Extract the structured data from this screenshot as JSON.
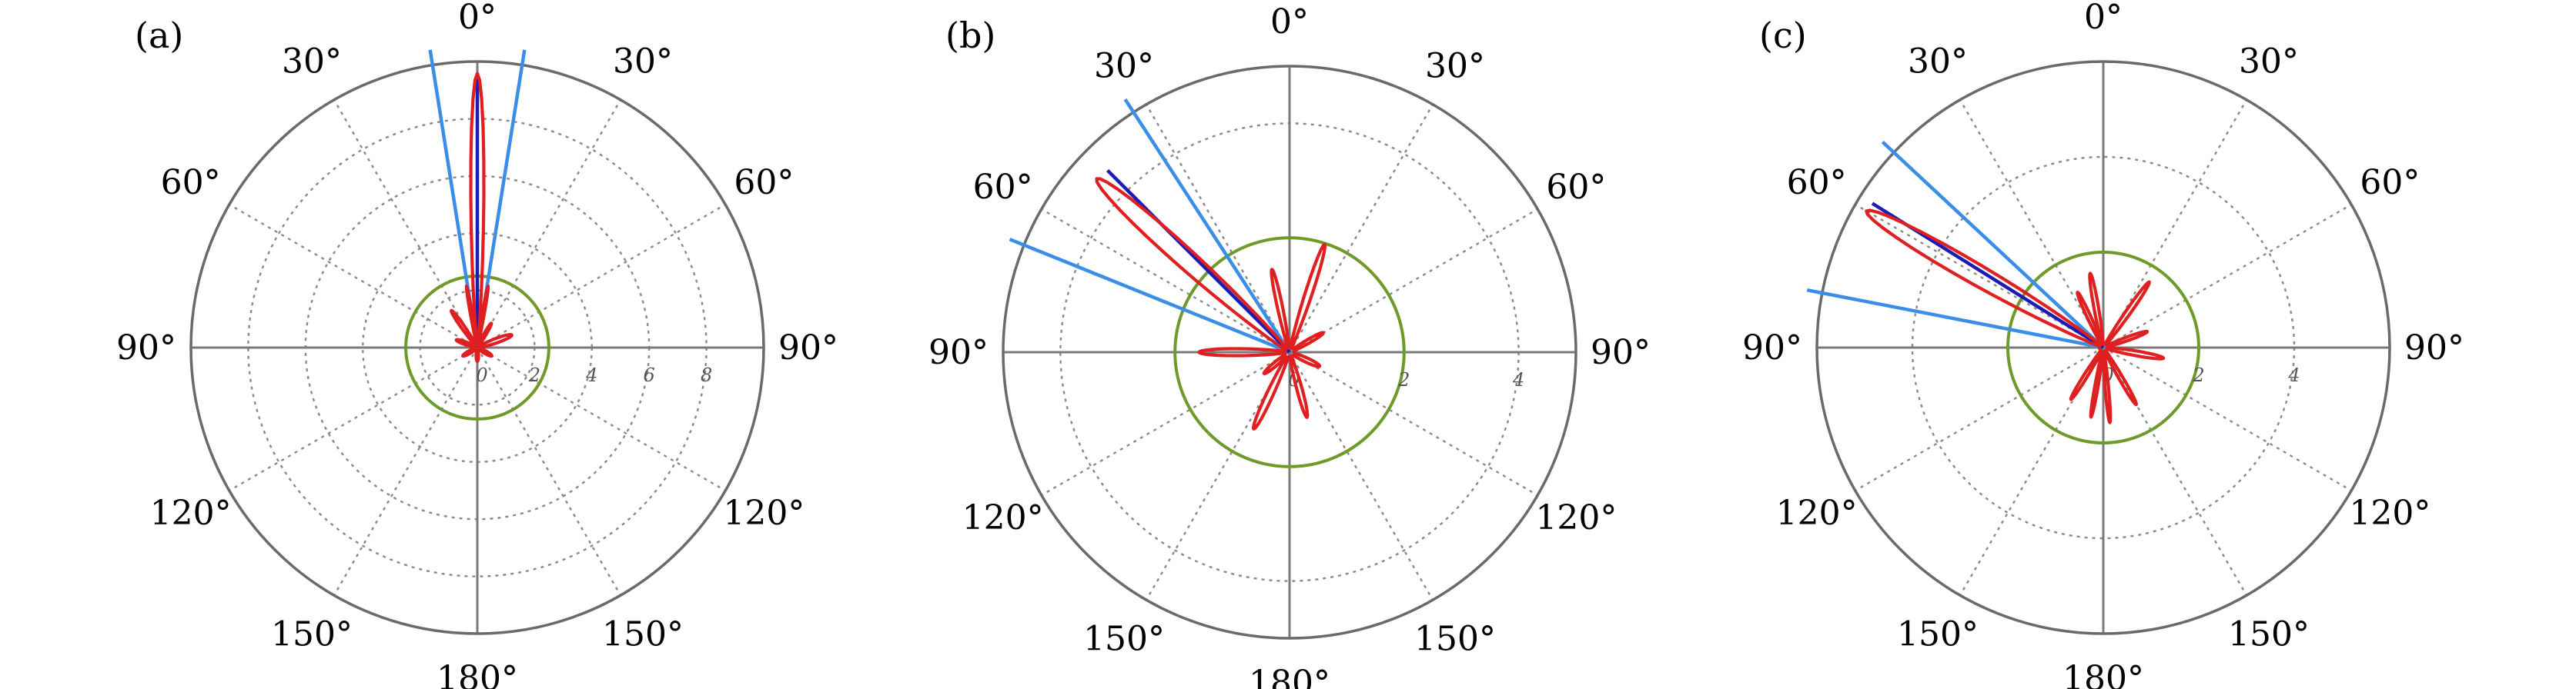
{
  "chart_data": [
    {
      "type": "polar",
      "panel_label": "(a)",
      "angle_labels": [
        {
          "angle": 0,
          "text": "0°"
        },
        {
          "angle": 30,
          "text": "30°"
        },
        {
          "angle": -30,
          "text": "30°"
        },
        {
          "angle": 60,
          "text": "60°"
        },
        {
          "angle": -60,
          "text": "60°"
        },
        {
          "angle": 90,
          "text": "90°"
        },
        {
          "angle": -90,
          "text": "90°"
        },
        {
          "angle": 120,
          "text": "120°"
        },
        {
          "angle": -120,
          "text": "120°"
        },
        {
          "angle": 150,
          "text": "150°"
        },
        {
          "angle": -150,
          "text": "150°"
        },
        {
          "angle": 180,
          "text": "180°"
        }
      ],
      "radial_ticks": [
        {
          "value": 0,
          "text": "0"
        },
        {
          "value": 2,
          "text": "2"
        },
        {
          "value": 4,
          "text": "4"
        },
        {
          "value": 6,
          "text": "6"
        },
        {
          "value": 8,
          "text": "8"
        }
      ],
      "r_max": 10,
      "grid": true,
      "reference_circle": {
        "r": 2.5,
        "color": "#6e9a2a"
      },
      "beam_center_deg": 0,
      "boundary_lines_deg": [
        -9,
        9
      ],
      "boundary_color": "#3b8ee8",
      "center_color": "#1c1cb4",
      "pattern_color": "#e02020",
      "pattern": {
        "main_lobe": {
          "dir": 0,
          "r": 9.5,
          "halfwidth_deg": 3.2
        },
        "side_lobes": [
          {
            "dir": -10,
            "r": 2.1,
            "halfwidth_deg": 2
          },
          {
            "dir": 10,
            "r": 2.1,
            "halfwidth_deg": 2
          },
          {
            "dir": -35,
            "r": 1.5,
            "halfwidth_deg": 5
          },
          {
            "dir": 30,
            "r": 0.9,
            "halfwidth_deg": 5
          },
          {
            "dir": 70,
            "r": 1.2,
            "halfwidth_deg": 8
          },
          {
            "dir": -70,
            "r": 0.7,
            "halfwidth_deg": 8
          },
          {
            "dir": 120,
            "r": 0.5,
            "halfwidth_deg": 10
          },
          {
            "dir": -120,
            "r": 0.5,
            "halfwidth_deg": 10
          },
          {
            "dir": 180,
            "r": 0.4,
            "halfwidth_deg": 10
          }
        ]
      }
    },
    {
      "type": "polar",
      "panel_label": "(b)",
      "angle_labels": [
        {
          "angle": 0,
          "text": "0°"
        },
        {
          "angle": 30,
          "text": "30°"
        },
        {
          "angle": -30,
          "text": "30°"
        },
        {
          "angle": 60,
          "text": "60°"
        },
        {
          "angle": -60,
          "text": "60°"
        },
        {
          "angle": 90,
          "text": "90°"
        },
        {
          "angle": -90,
          "text": "90°"
        },
        {
          "angle": 120,
          "text": "120°"
        },
        {
          "angle": -120,
          "text": "120°"
        },
        {
          "angle": 150,
          "text": "150°"
        },
        {
          "angle": -150,
          "text": "150°"
        },
        {
          "angle": 180,
          "text": "180°"
        }
      ],
      "radial_ticks": [
        {
          "value": 0,
          "text": "0"
        },
        {
          "value": 2,
          "text": "2"
        },
        {
          "value": 4,
          "text": "4"
        }
      ],
      "r_max": 5,
      "grid": true,
      "reference_circle": {
        "r": 2.0,
        "color": "#6e9a2a"
      },
      "beam_center_deg": -45,
      "boundary_lines_deg": [
        -33,
        -68
      ],
      "boundary_color": "#3b8ee8",
      "center_color": "#1c1cb4",
      "pattern_color": "#e02020",
      "pattern": {
        "main_lobe": {
          "dir": -48,
          "r": 4.45,
          "halfwidth_deg": 5
        },
        "side_lobes": [
          {
            "dir": 18,
            "r": 1.9,
            "halfwidth_deg": 4
          },
          {
            "dir": -12,
            "r": 1.4,
            "halfwidth_deg": 4
          },
          {
            "dir": 60,
            "r": 0.6,
            "halfwidth_deg": 6
          },
          {
            "dir": -90,
            "r": 1.5,
            "halfwidth_deg": 5
          },
          {
            "dir": 115,
            "r": 0.5,
            "halfwidth_deg": 8
          },
          {
            "dir": 165,
            "r": 1.1,
            "halfwidth_deg": 5
          },
          {
            "dir": -155,
            "r": 1.4,
            "halfwidth_deg": 5
          },
          {
            "dir": -130,
            "r": 0.5,
            "halfwidth_deg": 7
          }
        ]
      }
    },
    {
      "type": "polar",
      "panel_label": "(c)",
      "angle_labels": [
        {
          "angle": 0,
          "text": "0°"
        },
        {
          "angle": 30,
          "text": "30°"
        },
        {
          "angle": -30,
          "text": "30°"
        },
        {
          "angle": 60,
          "text": "60°"
        },
        {
          "angle": -60,
          "text": "60°"
        },
        {
          "angle": 90,
          "text": "90°"
        },
        {
          "angle": -90,
          "text": "90°"
        },
        {
          "angle": 120,
          "text": "120°"
        },
        {
          "angle": -120,
          "text": "120°"
        },
        {
          "angle": 150,
          "text": "150°"
        },
        {
          "angle": -150,
          "text": "150°"
        },
        {
          "angle": 180,
          "text": "180°"
        }
      ],
      "radial_ticks": [
        {
          "value": 0,
          "text": "0"
        },
        {
          "value": 2,
          "text": "2"
        },
        {
          "value": 4,
          "text": "4"
        }
      ],
      "r_max": 6,
      "grid": true,
      "reference_circle": {
        "r": 2.0,
        "color": "#6e9a2a"
      },
      "beam_center_deg": -58,
      "boundary_lines_deg": [
        -47,
        -79
      ],
      "boundary_color": "#3b8ee8",
      "center_color": "#1c1cb4",
      "pattern_color": "#e02020",
      "pattern": {
        "main_lobe": {
          "dir": -60,
          "r": 5.65,
          "halfwidth_deg": 5
        },
        "side_lobes": [
          {
            "dir": 35,
            "r": 1.6,
            "halfwidth_deg": 4
          },
          {
            "dir": 70,
            "r": 0.9,
            "halfwidth_deg": 5
          },
          {
            "dir": -10,
            "r": 1.5,
            "halfwidth_deg": 4
          },
          {
            "dir": -25,
            "r": 1.2,
            "halfwidth_deg": 4
          },
          {
            "dir": 100,
            "r": 1.2,
            "halfwidth_deg": 5
          },
          {
            "dir": 150,
            "r": 1.3,
            "halfwidth_deg": 4
          },
          {
            "dir": 175,
            "r": 1.5,
            "halfwidth_deg": 3
          },
          {
            "dir": -170,
            "r": 1.4,
            "halfwidth_deg": 3
          },
          {
            "dir": -148,
            "r": 1.2,
            "halfwidth_deg": 4
          }
        ]
      }
    }
  ]
}
